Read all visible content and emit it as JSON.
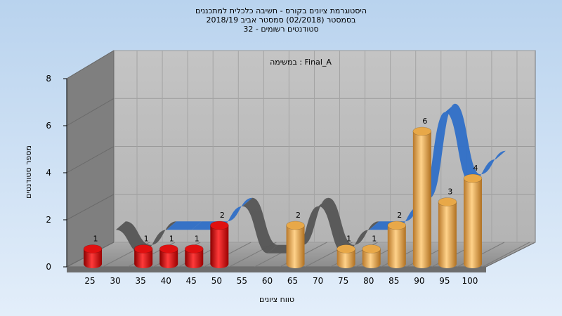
{
  "chart_data": {
    "type": "bar",
    "title_lines": [
      "היסטוגרמת ציונים בקורס - חשיבה כלכלית למתכננים",
      "בסמסטר (02/2018) סמסטר אביב 2018/19",
      "סטודנטים רשומים - 32"
    ],
    "annotation": "במשימה : Final_A",
    "xlabel": "טווח ציונים",
    "ylabel": "מספר סטודנטים",
    "ylim": [
      0,
      8
    ],
    "yticks": [
      0,
      2,
      4,
      6,
      8
    ],
    "categories": [
      "25",
      "30",
      "35",
      "40",
      "45",
      "50",
      "55",
      "60",
      "65",
      "70",
      "75",
      "80",
      "85",
      "90",
      "95",
      "100"
    ],
    "values": [
      1,
      0,
      1,
      1,
      1,
      2,
      0,
      0,
      2,
      0,
      1,
      1,
      2,
      6,
      3,
      4
    ],
    "bar_colors": {
      "fail": "#e01010",
      "pass": "#e8a848"
    },
    "fail_categories": [
      "25",
      "30",
      "35",
      "40",
      "45",
      "50",
      "55"
    ],
    "trend_ribbon": true,
    "ribbon_colors": {
      "low": "#555555",
      "high": "#2f6fc7"
    },
    "grid": true
  }
}
